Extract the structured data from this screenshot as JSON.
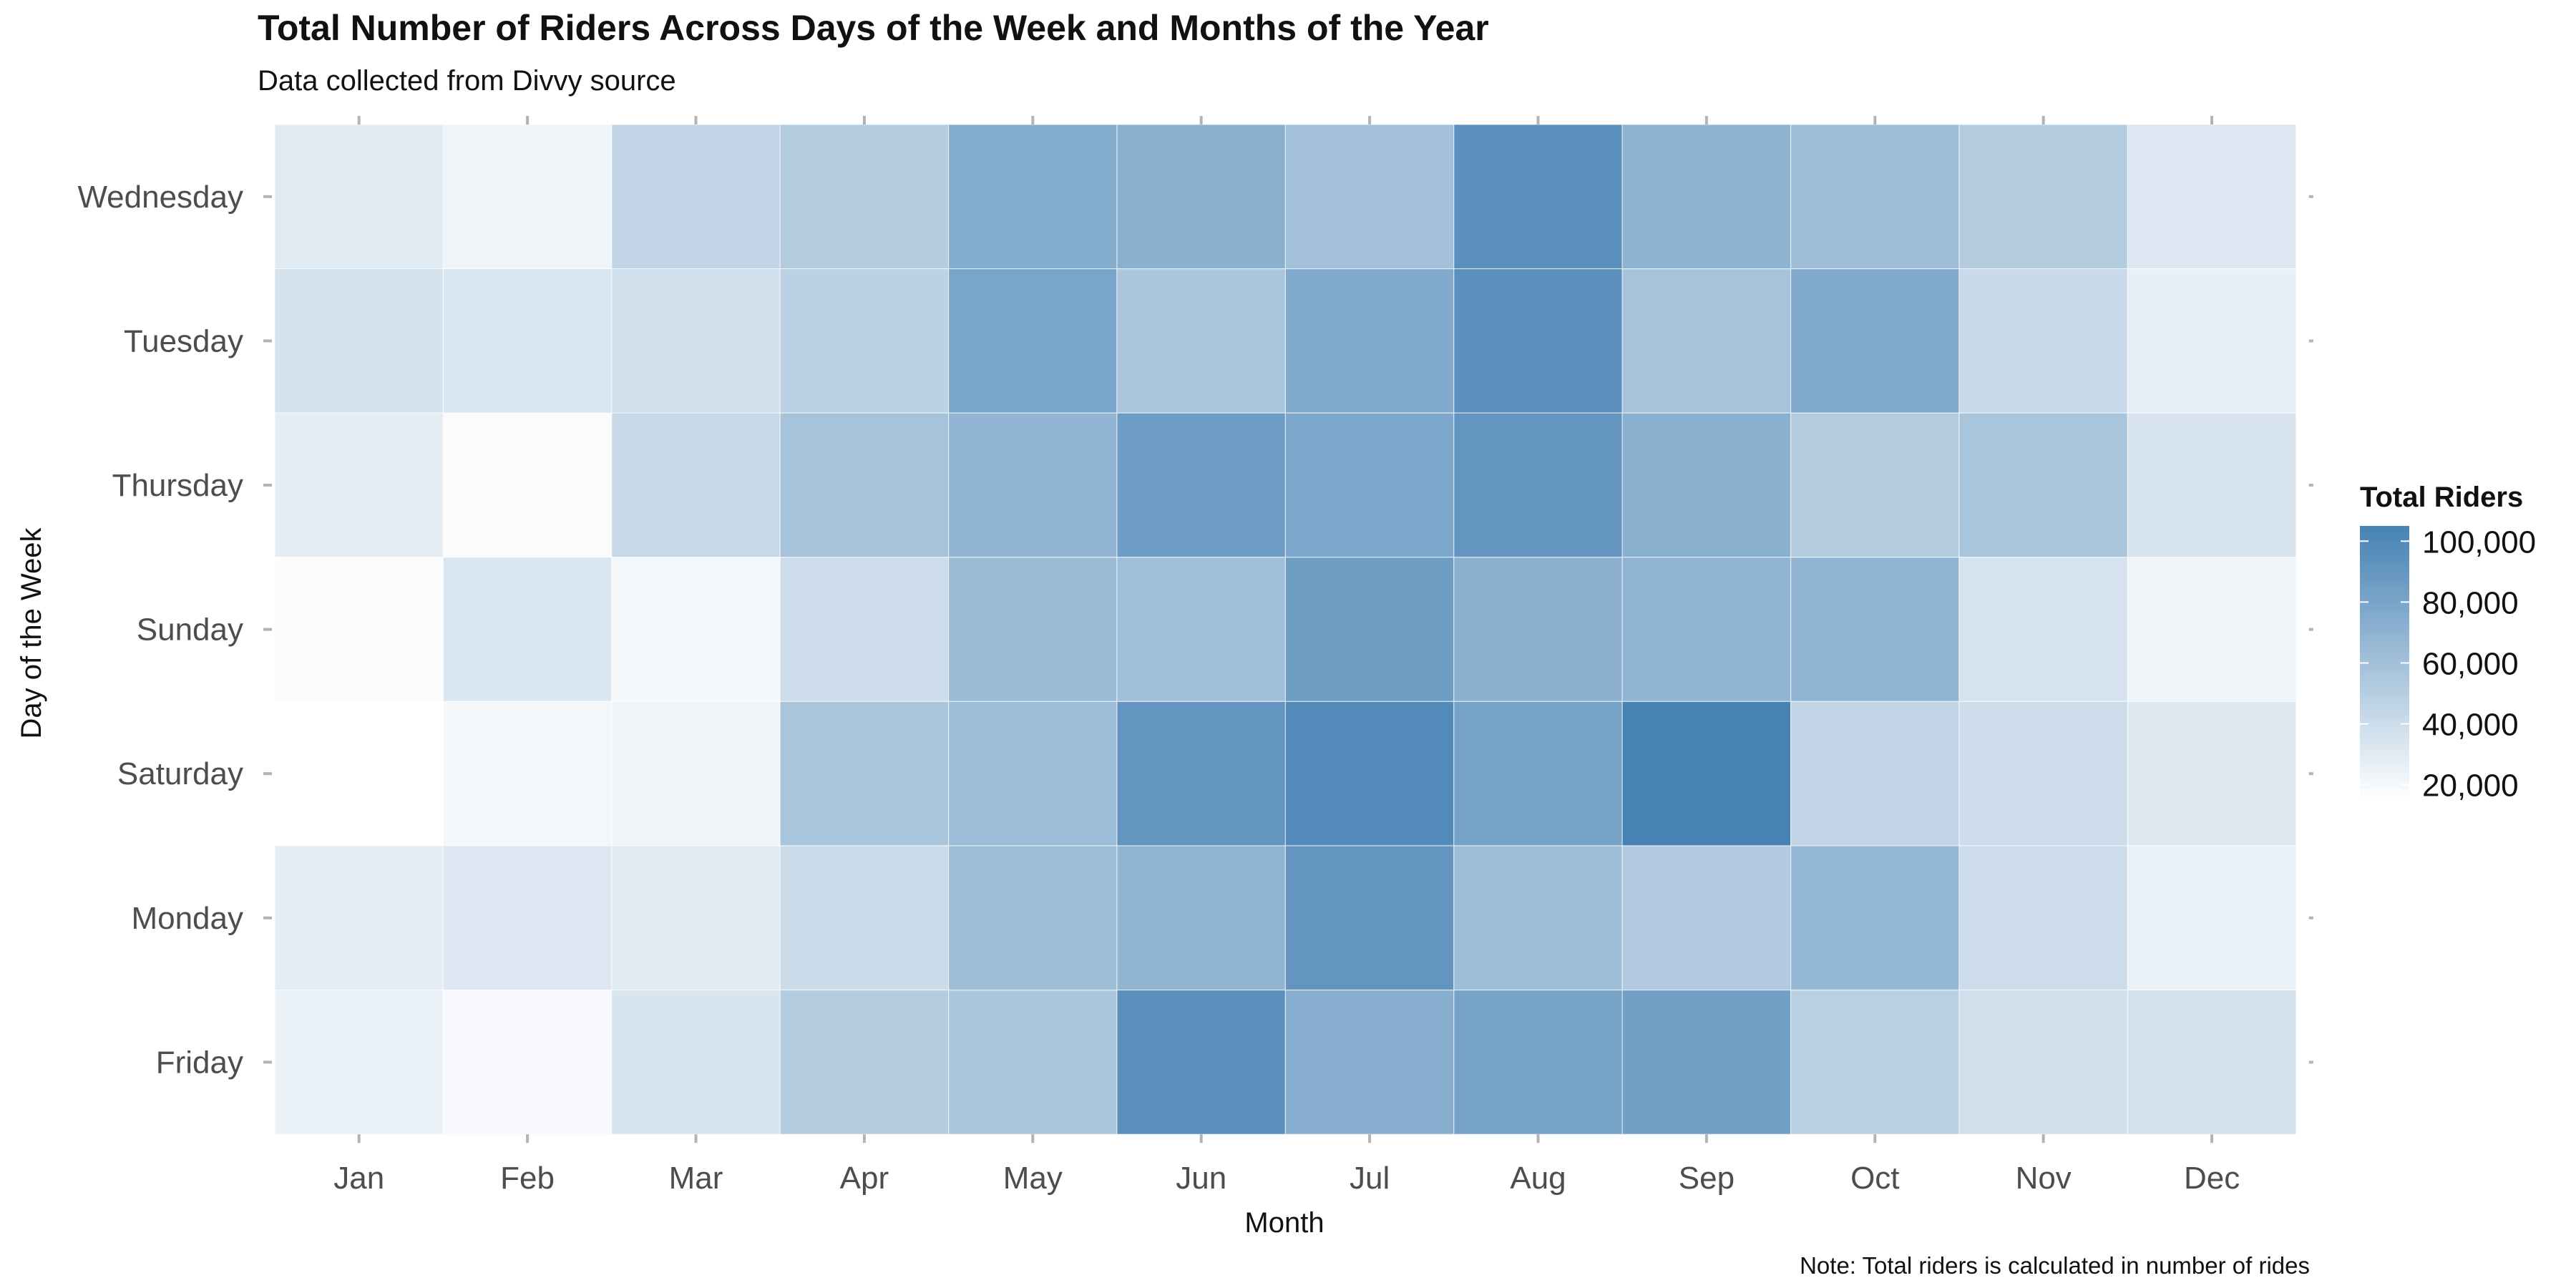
{
  "chart_data": {
    "type": "heatmap",
    "title": "Total Number of Riders Across Days of the Week and Months of the Year",
    "subtitle": "Data collected from Divvy source",
    "xlabel": "Month",
    "ylabel": "Day of the Week",
    "note": "Note: Total riders is calculated in number of rides",
    "x_categories": [
      "Jan",
      "Feb",
      "Mar",
      "Apr",
      "May",
      "Jun",
      "Jul",
      "Aug",
      "Sep",
      "Oct",
      "Nov",
      "Dec"
    ],
    "y_categories": [
      "Wednesday",
      "Tuesday",
      "Thursday",
      "Sunday",
      "Saturday",
      "Monday",
      "Friday"
    ],
    "values": [
      [
        30000,
        23000,
        45000,
        52000,
        75000,
        72000,
        60000,
        95000,
        70000,
        62000,
        52000,
        32000
      ],
      [
        36000,
        33000,
        38000,
        48000,
        80000,
        56000,
        76000,
        95000,
        58000,
        76000,
        42000,
        26000
      ],
      [
        28000,
        18000,
        42000,
        58000,
        68000,
        86000,
        78000,
        91000,
        72000,
        52000,
        57000,
        34000
      ],
      [
        17000,
        33000,
        21000,
        40000,
        64000,
        61000,
        85000,
        71000,
        69000,
        68000,
        35000,
        23000
      ],
      [
        15000,
        21000,
        23000,
        57000,
        63000,
        91000,
        99000,
        81000,
        105000,
        45000,
        40000,
        31000
      ],
      [
        28000,
        32000,
        30000,
        41000,
        62000,
        68000,
        91000,
        62000,
        53000,
        67000,
        40000,
        25000
      ],
      [
        25000,
        19000,
        34000,
        52000,
        56000,
        95000,
        73000,
        81000,
        84000,
        49000,
        38000,
        36000
      ]
    ],
    "legend": {
      "title": "Total Riders",
      "min": 15000,
      "max": 105000,
      "breaks": [
        20000,
        40000,
        60000,
        80000,
        100000
      ],
      "break_labels": [
        "20,000",
        "40,000",
        "60,000",
        "80,000",
        "100,000"
      ],
      "placement": "right"
    },
    "color_low": "#ffffff",
    "color_high": "#4682b4",
    "panel_background": "#ebebeb"
  }
}
